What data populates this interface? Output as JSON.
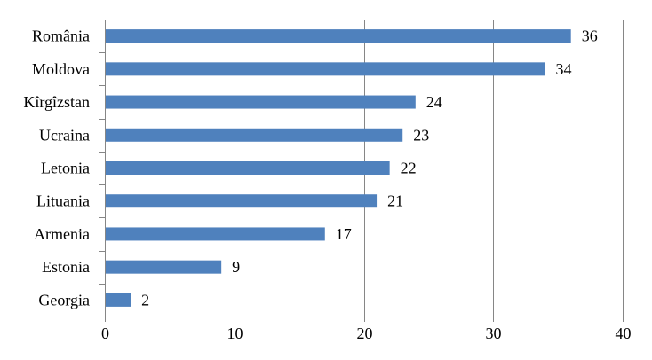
{
  "chart_data": {
    "type": "bar",
    "orientation": "horizontal",
    "categories": [
      "România",
      "Moldova",
      "Kîrgîzstan",
      "Ucraina",
      "Letonia",
      "Lituania",
      "Armenia",
      "Estonia",
      "Georgia"
    ],
    "values": [
      36,
      34,
      24,
      23,
      22,
      21,
      17,
      9,
      2
    ],
    "x_ticks": [
      0,
      10,
      20,
      30,
      40
    ],
    "xlim": [
      0,
      40
    ],
    "grid": "vertical",
    "legend": "none",
    "data_labels": true,
    "bar_color": "#4F81BD",
    "grid_color": "#868686"
  }
}
